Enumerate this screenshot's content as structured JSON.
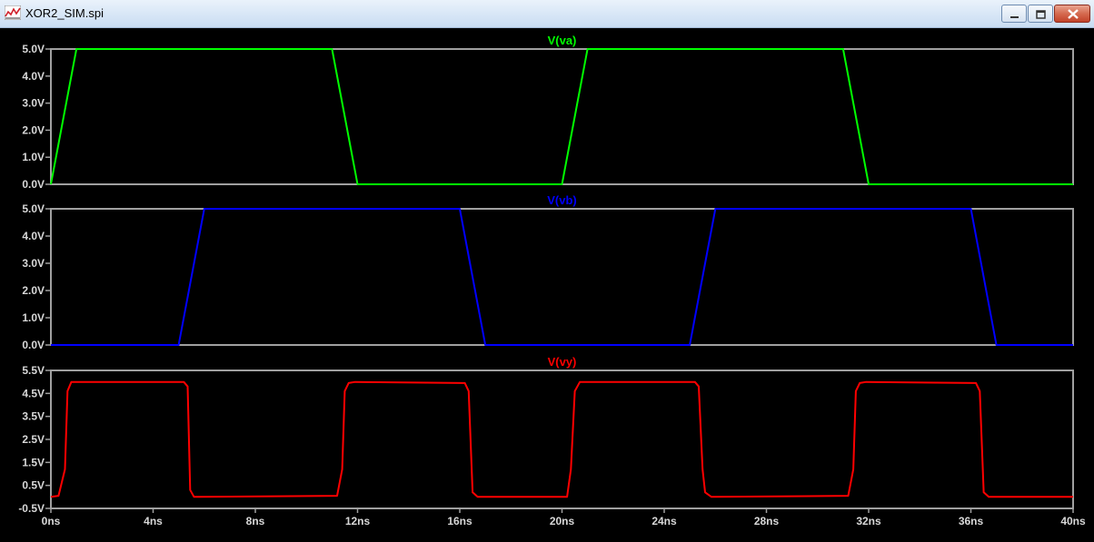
{
  "window": {
    "title": "XOR2_SIM.spi"
  },
  "chart_data": [
    {
      "type": "line",
      "title": "V(va)",
      "color": "#00ff00",
      "xlim": [
        0,
        40
      ],
      "ylim": [
        0,
        5
      ],
      "yticks": [
        "0.0V",
        "1.0V",
        "2.0V",
        "3.0V",
        "4.0V",
        "5.0V"
      ],
      "ytick_values": [
        0,
        1,
        2,
        3,
        4,
        5
      ],
      "x": [
        0,
        1,
        11,
        12,
        20,
        21,
        31,
        32,
        40
      ],
      "y": [
        0,
        5,
        5,
        0,
        0,
        5,
        5,
        0,
        0
      ]
    },
    {
      "type": "line",
      "title": "V(vb)",
      "color": "#0000ff",
      "xlim": [
        0,
        40
      ],
      "ylim": [
        0,
        5
      ],
      "yticks": [
        "0.0V",
        "1.0V",
        "2.0V",
        "3.0V",
        "4.0V",
        "5.0V"
      ],
      "ytick_values": [
        0,
        1,
        2,
        3,
        4,
        5
      ],
      "x": [
        0,
        5,
        6,
        16,
        17,
        25,
        26,
        36,
        37,
        40
      ],
      "y": [
        0,
        0,
        5,
        5,
        0,
        0,
        5,
        5,
        0,
        0
      ]
    },
    {
      "type": "line",
      "title": "V(vy)",
      "color": "#ff0000",
      "xlim": [
        0,
        40
      ],
      "ylim": [
        -0.5,
        5.5
      ],
      "yticks": [
        "-0.5V",
        "0.5V",
        "1.5V",
        "2.5V",
        "3.5V",
        "4.5V",
        "5.5V"
      ],
      "ytick_values": [
        -0.5,
        0.5,
        1.5,
        2.5,
        3.5,
        4.5,
        5.5
      ],
      "x": [
        0,
        0.3,
        0.55,
        0.65,
        0.8,
        5.2,
        5.35,
        5.45,
        5.6,
        5.8,
        11.2,
        11.4,
        11.5,
        11.65,
        11.9,
        16.2,
        16.35,
        16.5,
        16.7,
        20.2,
        20.35,
        20.5,
        20.7,
        25.2,
        25.35,
        25.5,
        25.6,
        25.85,
        31.2,
        31.4,
        31.5,
        31.65,
        31.9,
        36.2,
        36.35,
        36.5,
        36.7,
        40
      ],
      "y": [
        0,
        0.05,
        1.2,
        4.6,
        5,
        5,
        4.8,
        0.3,
        0,
        0,
        0.05,
        1.2,
        4.6,
        4.95,
        5,
        4.95,
        4.6,
        0.2,
        0,
        0,
        1.2,
        4.6,
        5,
        5,
        4.8,
        1.2,
        0.2,
        0,
        0.05,
        1.2,
        4.6,
        4.95,
        5,
        4.95,
        4.6,
        0.2,
        0,
        0
      ]
    }
  ],
  "x_axis": {
    "ticks": [
      "0ns",
      "4ns",
      "8ns",
      "12ns",
      "16ns",
      "20ns",
      "24ns",
      "28ns",
      "32ns",
      "36ns",
      "40ns"
    ],
    "tick_values": [
      0,
      4,
      8,
      12,
      16,
      20,
      24,
      28,
      32,
      36,
      40
    ]
  }
}
